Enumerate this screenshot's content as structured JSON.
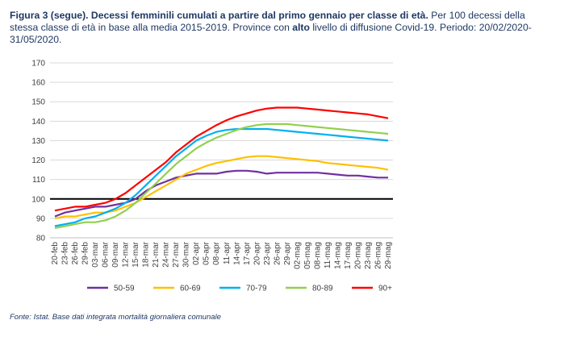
{
  "caption": {
    "label": "Figura 3 (segue).",
    "title_bold": "Decessi femminili cumulati a partire dal primo gennaio per classe di età.",
    "text_1": "Per 100 decessi della stessa classe di età in base alla media 2015-2019. Province con",
    "highlight": "alto",
    "text_2": "livello di diffusione Covid-19. Periodo: 20/02/2020-31/05/2020."
  },
  "source": "Fonte: Istat. Base dati integrata mortalità giornaliera comunale",
  "chart_data": {
    "type": "line",
    "ylim": [
      80,
      170
    ],
    "yticks": [
      80,
      90,
      100,
      110,
      120,
      130,
      140,
      150,
      160,
      170
    ],
    "reference_line": 100,
    "grid": "horizontal",
    "legend_position": "bottom",
    "x": [
      "20-feb",
      "23-feb",
      "26-feb",
      "29-feb",
      "03-mar",
      "06-mar",
      "09-mar",
      "12-mar",
      "15-mar",
      "18-mar",
      "21-mar",
      "24-mar",
      "27-mar",
      "30-mar",
      "02-apr",
      "05-apr",
      "08-apr",
      "11-apr",
      "14-apr",
      "17-apr",
      "20-apr",
      "23-apr",
      "26-apr",
      "29-apr",
      "02-mag",
      "05-mag",
      "08-mag",
      "11-mag",
      "14-mag",
      "17-mag",
      "20-mag",
      "23-mag",
      "26-mag",
      "29-mag"
    ],
    "series": [
      {
        "name": "50-59",
        "color": "#7030a0",
        "values": [
          91,
          93,
          94,
          95,
          96,
          96,
          97,
          98,
          100,
          104,
          107,
          109,
          111,
          112,
          113,
          113,
          113,
          114,
          114.5,
          114.5,
          114,
          113,
          113.5,
          113.5,
          113.5,
          113.5,
          113.5,
          113,
          112.5,
          112,
          112,
          111.5,
          111,
          111
        ]
      },
      {
        "name": "60-69",
        "color": "#ffc000",
        "values": [
          90,
          91,
          91,
          92,
          93,
          93,
          94,
          96,
          98,
          101,
          104,
          107,
          110,
          113,
          115,
          117,
          118.5,
          119.5,
          120.5,
          121.5,
          122,
          122,
          121.5,
          121,
          120.5,
          120,
          119.5,
          118.5,
          118,
          117.5,
          117,
          116.5,
          116,
          115
        ]
      },
      {
        "name": "70-79",
        "color": "#00b0f0",
        "values": [
          86,
          87,
          88,
          90,
          91,
          93,
          95,
          98,
          102,
          107,
          112,
          117,
          122,
          126,
          130,
          132.5,
          134.5,
          135.5,
          136,
          136,
          136,
          136,
          135.5,
          135,
          134.5,
          134,
          133.5,
          133,
          132.5,
          132,
          131.5,
          131,
          130.5,
          130
        ]
      },
      {
        "name": "80-89",
        "color": "#92d050",
        "values": [
          85,
          86,
          87,
          88,
          88,
          89,
          91,
          94,
          98,
          103,
          108,
          113,
          118,
          122,
          126,
          129,
          131.5,
          133.5,
          135.5,
          137,
          138,
          138.5,
          138.5,
          138.5,
          138,
          137.5,
          137,
          136.5,
          136,
          135.5,
          135,
          134.5,
          134,
          133.5
        ]
      },
      {
        "name": "90+",
        "color": "#ff0000",
        "values": [
          94,
          95,
          96,
          96,
          97,
          98,
          100,
          103,
          107,
          111,
          115,
          119,
          124,
          128,
          132,
          135,
          138,
          140.5,
          142.5,
          144,
          145.5,
          146.5,
          147,
          147,
          147,
          146.5,
          146,
          145.5,
          145,
          144.5,
          144,
          143.5,
          142.5,
          141.5
        ]
      }
    ]
  }
}
